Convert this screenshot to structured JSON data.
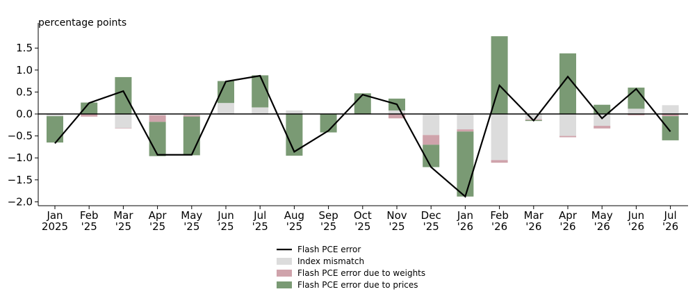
{
  "chart_data": {
    "type": "bar",
    "ylabel": "percentage points",
    "ylim": [
      -2.1,
      1.9
    ],
    "yticks": [
      "−2.0",
      "−1.5",
      "−1.0",
      "−0.5",
      "0.0",
      "0.5",
      "1.0",
      "1.5"
    ],
    "ytick_values": [
      -2.0,
      -1.5,
      -1.0,
      -0.5,
      0.0,
      0.5,
      1.0,
      1.5
    ],
    "categories": [
      "Jan 2025",
      "Feb '25",
      "Mar '25",
      "Apr '25",
      "May '25",
      "Jun '25",
      "Jul '25",
      "Aug '25",
      "Sep '25",
      "Oct '25",
      "Nov '25",
      "Dec '25",
      "Jan '26",
      "Feb '26",
      "Mar '26",
      "Apr '26",
      "May '26",
      "Jun '26",
      "Jul '26"
    ],
    "category_lines": [
      [
        "Jan",
        "2025"
      ],
      [
        "Feb",
        "'25"
      ],
      [
        "Mar",
        "'25"
      ],
      [
        "Apr",
        "'25"
      ],
      [
        "May",
        "'25"
      ],
      [
        "Jun",
        "'25"
      ],
      [
        "Jul",
        "'25"
      ],
      [
        "Aug",
        "'25"
      ],
      [
        "Sep",
        "'25"
      ],
      [
        "Oct",
        "'25"
      ],
      [
        "Nov",
        "'25"
      ],
      [
        "Dec",
        "'25"
      ],
      [
        "Jan",
        "'26"
      ],
      [
        "Feb",
        "'26"
      ],
      [
        "Mar",
        "'26"
      ],
      [
        "Apr",
        "'26"
      ],
      [
        "May",
        "'26"
      ],
      [
        "Jun",
        "'26"
      ],
      [
        "Jul",
        "'26"
      ]
    ],
    "stacked": true,
    "series": [
      {
        "name": "Index mismatch",
        "kind": "bar",
        "color": "#dcdcdc",
        "values": [
          -0.05,
          0.0,
          -0.32,
          -0.03,
          -0.03,
          0.25,
          0.15,
          0.08,
          0.0,
          0.0,
          0.08,
          -0.48,
          -0.35,
          -1.05,
          -0.12,
          -0.5,
          -0.27,
          0.12,
          0.2
        ]
      },
      {
        "name": "Flash PCE error due to weights",
        "kind": "bar",
        "color": "#cfa3ab",
        "values": [
          0.0,
          -0.06,
          -0.01,
          -0.15,
          -0.03,
          0.0,
          0.0,
          0.0,
          0.0,
          -0.01,
          -0.1,
          -0.22,
          -0.05,
          -0.06,
          -0.02,
          -0.03,
          -0.06,
          -0.03,
          -0.05
        ]
      },
      {
        "name": "Flash PCE error due to prices",
        "kind": "bar",
        "color": "#7a9a74",
        "values": [
          -0.6,
          0.26,
          0.84,
          -0.78,
          -0.88,
          0.5,
          0.73,
          -0.95,
          -0.42,
          0.47,
          0.27,
          -0.51,
          -1.48,
          1.77,
          -0.02,
          1.38,
          0.21,
          0.48,
          -0.55
        ]
      },
      {
        "name": "Flash PCE error",
        "kind": "line",
        "color": "#000000",
        "values": [
          -0.67,
          0.25,
          0.52,
          -0.93,
          -0.93,
          0.74,
          0.87,
          -0.86,
          -0.38,
          0.44,
          0.22,
          -1.21,
          -1.88,
          0.65,
          -0.15,
          0.85,
          -0.1,
          0.57,
          -0.4
        ]
      }
    ],
    "legend_order": [
      "Flash PCE error",
      "Index mismatch",
      "Flash PCE error due to weights",
      "Flash PCE error due to prices"
    ],
    "legend_position": "bottom-center",
    "grid": false
  }
}
